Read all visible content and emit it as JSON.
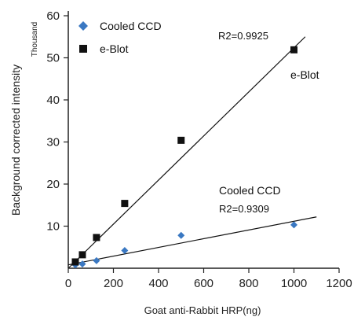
{
  "chart_data": {
    "type": "scatter",
    "xlabel": "Goat anti-Rabbit HRP(ng)",
    "ylabel": "Background corrected intensity",
    "yunit": "Thousand",
    "xlim": [
      0,
      1200
    ],
    "ylim": [
      0,
      60
    ],
    "xticks": [
      0,
      200,
      400,
      600,
      800,
      1000,
      1200
    ],
    "yticks": [
      10,
      20,
      30,
      40,
      50,
      60
    ],
    "grid": false,
    "legend_position": "top-left",
    "series": [
      {
        "name": "Cooled CCD",
        "marker": "diamond",
        "color": "#3a78c2",
        "x": [
          31.25,
          62.5,
          125,
          250,
          500,
          1000
        ],
        "y": [
          0.8,
          1.0,
          1.8,
          4.2,
          7.8,
          10.3
        ],
        "trendline": {
          "x": [
            0,
            1100
          ],
          "y": [
            0.8,
            12.2
          ]
        },
        "r2_label": "R2=0.9309",
        "series_label": "Cooled CCD"
      },
      {
        "name": "e-Blot",
        "marker": "square",
        "color": "#111111",
        "x": [
          31.25,
          62.5,
          125,
          250,
          500,
          1000
        ],
        "y": [
          1.5,
          3.2,
          7.3,
          15.4,
          30.4,
          51.9
        ],
        "trendline": {
          "x": [
            0,
            1050
          ],
          "y": [
            0.0,
            55.0
          ]
        },
        "r2_label": "R2=0.9925",
        "series_label": "e-Blot"
      }
    ]
  }
}
